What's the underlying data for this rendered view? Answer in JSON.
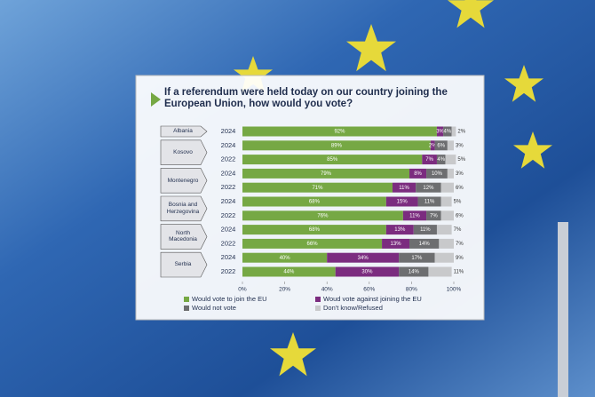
{
  "chart_data": {
    "type": "bar",
    "orientation": "horizontal",
    "stacked": true,
    "title": "If a referendum were held today on our country joining the European Union, how would you vote?",
    "groups": [
      {
        "name": "Albania",
        "categories": [
          "2024"
        ]
      },
      {
        "name": "Kosovo",
        "categories": [
          "2024",
          "2022"
        ]
      },
      {
        "name": "Montenegro",
        "categories": [
          "2024",
          "2022"
        ]
      },
      {
        "name": "Bosnia and Herzegovina",
        "categories": [
          "2024",
          "2022"
        ]
      },
      {
        "name": "North Macedonia",
        "categories": [
          "2024",
          "2022"
        ]
      },
      {
        "name": "Serbia",
        "categories": [
          "2024",
          "2022"
        ]
      }
    ],
    "series": [
      {
        "name": "Would vote to join the EU",
        "color": "#76a844",
        "values": [
          92,
          89,
          85,
          79,
          71,
          68,
          76,
          68,
          66,
          40,
          44
        ],
        "value_labels": [
          "92%",
          "89%",
          "85%",
          "79%",
          "71%",
          "68%",
          "76%",
          "68%",
          "66%",
          "40%",
          "44%"
        ]
      },
      {
        "name": "Woud vote against joining the EU",
        "color": "#7b2c7f",
        "values": [
          3,
          2,
          7,
          8,
          11,
          15,
          11,
          13,
          13,
          34,
          30
        ],
        "value_labels": [
          "3%",
          "2%",
          "7%",
          "8%",
          "11%",
          "15%",
          "11%",
          "13%",
          "13%",
          "34%",
          "30%"
        ]
      },
      {
        "name": "Would not vote",
        "color": "#6d6e70",
        "values": [
          4,
          6,
          4,
          10,
          12,
          11,
          7,
          11,
          14,
          17,
          14
        ],
        "value_labels": [
          "4%",
          "6%",
          "4%",
          "10%",
          "12%",
          "11%",
          "7%",
          "11%",
          "14%",
          "17%",
          "14%"
        ]
      },
      {
        "name": "Don't know/Refused",
        "color": "#c8c9cb",
        "values": [
          2,
          3,
          5,
          3,
          6,
          5,
          6,
          7,
          7,
          9,
          11
        ],
        "value_labels": [
          "2%",
          "3%",
          "5%",
          "3%",
          "6%",
          "5%",
          "6%",
          "7%",
          "7%",
          "9%",
          "11%"
        ]
      }
    ],
    "xlim": [
      0,
      100
    ],
    "xticks": [
      {
        "value": 0,
        "label": "0%"
      },
      {
        "value": 20,
        "label": "20%"
      },
      {
        "value": 40,
        "label": "40%"
      },
      {
        "value": 60,
        "label": "60%"
      },
      {
        "value": 80,
        "label": "80%"
      },
      {
        "value": 100,
        "label": "100%"
      }
    ],
    "grid": false
  }
}
